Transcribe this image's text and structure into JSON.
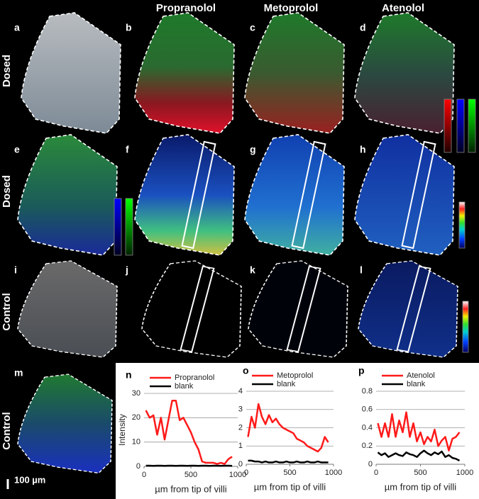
{
  "header": {
    "columns": [
      "Propranolol",
      "Metoprolol",
      "Atenolol"
    ]
  },
  "rows": [
    "Dosed",
    "Dosed",
    "Control",
    "Control"
  ],
  "panels": [
    "a",
    "b",
    "c",
    "d",
    "e",
    "f",
    "g",
    "h",
    "i",
    "j",
    "k",
    "l",
    "m",
    "n",
    "o",
    "p"
  ],
  "scale_bar": "100 µm",
  "chart_data": [
    {
      "type": "line",
      "ylabel": "Intensity",
      "xlabel": "µm from tip of villi",
      "x": [
        20,
        60,
        100,
        140,
        180,
        220,
        260,
        300,
        340,
        380,
        420,
        460,
        500,
        540,
        580,
        620,
        660,
        700,
        740,
        780,
        820,
        860,
        900,
        940
      ],
      "series": [
        {
          "name": "Propranolol",
          "color": "#ff1a1a",
          "values": [
            23,
            20,
            21,
            13,
            20,
            11,
            19,
            27,
            27,
            19,
            20,
            17,
            14,
            10,
            7,
            2,
            1.5,
            1.5,
            1.5,
            1,
            1.5,
            1,
            3,
            4
          ]
        },
        {
          "name": "blank",
          "color": "#000000",
          "values": [
            0.3,
            0.3,
            0.2,
            0.3,
            0.3,
            0.2,
            0.3,
            0.3,
            0.2,
            0.3,
            0.3,
            0.2,
            0.3,
            0.3,
            0.2,
            0.3,
            0.3,
            0.2,
            0.3,
            0.3,
            0.2,
            0.3,
            0.3,
            0.2
          ]
        }
      ],
      "xlim": [
        0,
        1000
      ],
      "xticks": [
        0,
        500,
        1000
      ],
      "ylim": [
        0,
        30
      ],
      "yticks": [
        0,
        10,
        20,
        30
      ],
      "grid": true
    },
    {
      "type": "line",
      "xlabel": "µm from tip of villi",
      "x": [
        20,
        60,
        100,
        140,
        180,
        220,
        260,
        300,
        340,
        380,
        420,
        460,
        500,
        540,
        580,
        620,
        660,
        700,
        740,
        780,
        820,
        860,
        900,
        940
      ],
      "series": [
        {
          "name": "Metoprolol",
          "color": "#ff1a1a",
          "values": [
            1.5,
            2.6,
            2.0,
            3.3,
            2.6,
            2.2,
            2.7,
            2.3,
            2.5,
            2.2,
            2.0,
            1.9,
            1.8,
            1.7,
            1.4,
            1.3,
            1.2,
            1.0,
            0.9,
            0.8,
            0.7,
            0.9,
            1.5,
            1.2
          ]
        },
        {
          "name": "blank",
          "color": "#000000",
          "values": [
            0.2,
            0.2,
            0.15,
            0.15,
            0.1,
            0.15,
            0.1,
            0.1,
            0.15,
            0.1,
            0.1,
            0.15,
            0.1,
            0.1,
            0.15,
            0.1,
            0.1,
            0.15,
            0.1,
            0.1,
            0.15,
            0.1,
            0.1,
            0.1
          ]
        }
      ],
      "xlim": [
        0,
        1000
      ],
      "xticks": [
        0,
        500,
        1000
      ],
      "ylim": [
        0,
        4
      ],
      "yticks": [
        0,
        1,
        2,
        3,
        4
      ],
      "grid": true
    },
    {
      "type": "line",
      "xlabel": "µm from tip of villi",
      "x": [
        20,
        60,
        100,
        140,
        180,
        220,
        260,
        300,
        340,
        380,
        420,
        460,
        500,
        540,
        580,
        620,
        660,
        700,
        740,
        780,
        820,
        860,
        900,
        940
      ],
      "series": [
        {
          "name": "Atenolol",
          "color": "#ff1a1a",
          "values": [
            0.45,
            0.3,
            0.45,
            0.3,
            0.55,
            0.3,
            0.48,
            0.35,
            0.57,
            0.3,
            0.45,
            0.25,
            0.35,
            0.22,
            0.3,
            0.25,
            0.38,
            0.2,
            0.26,
            0.3,
            0.15,
            0.28,
            0.3,
            0.35
          ]
        },
        {
          "name": "blank",
          "color": "#000000",
          "values": [
            0.13,
            0.1,
            0.12,
            0.08,
            0.1,
            0.12,
            0.1,
            0.09,
            0.13,
            0.11,
            0.1,
            0.08,
            0.12,
            0.15,
            0.12,
            0.1,
            0.13,
            0.11,
            0.14,
            0.08,
            0.1,
            0.07,
            0.06,
            0.04
          ]
        }
      ],
      "xlim": [
        0,
        1000
      ],
      "xticks": [
        0,
        500,
        1000
      ],
      "ylim": [
        0,
        0.8
      ],
      "yticks": [
        0,
        0.2,
        0.4,
        0.6,
        0.8
      ],
      "grid": true
    }
  ]
}
